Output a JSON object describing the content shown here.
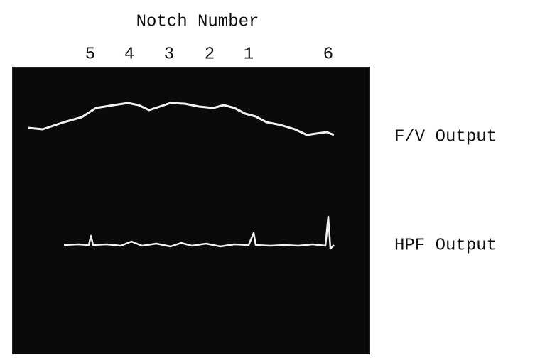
{
  "figure": {
    "title": "Notch Number",
    "notch_labels": [
      "5",
      "4",
      "3",
      "2",
      "1",
      "6"
    ],
    "trace_labels": [
      "F/V Output",
      "HPF Output"
    ]
  }
}
